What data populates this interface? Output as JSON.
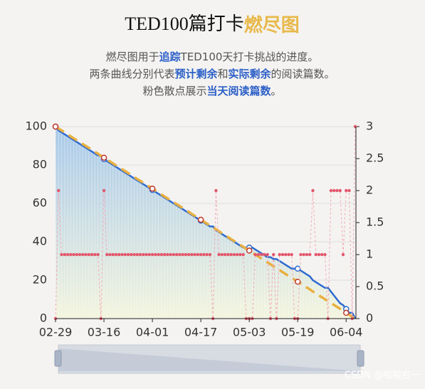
{
  "chart_data": {
    "type": "burndown",
    "title": "TED100篇打卡",
    "title_highlight": "燃尽图",
    "subtitle": [
      [
        {
          "text": "燃尽图用于",
          "bold": false
        },
        {
          "text": "追踪",
          "bold": true
        },
        {
          "text": "TED100天打卡挑战的进度。",
          "bold": false
        }
      ],
      [
        {
          "text": "两条曲线分别代表",
          "bold": false
        },
        {
          "text": "预计剩余",
          "bold": true
        },
        {
          "text": "和",
          "bold": false
        },
        {
          "text": "实际剩余",
          "bold": true
        },
        {
          "text": "的阅读篇数。",
          "bold": false
        }
      ],
      [
        {
          "text": "粉色散点展示",
          "bold": false
        },
        {
          "text": "当天阅读篇数",
          "bold": true
        },
        {
          "text": "。",
          "bold": false
        }
      ]
    ],
    "categories": [
      "02-29",
      null,
      null,
      null,
      null,
      null,
      null,
      null,
      null,
      null,
      null,
      null,
      null,
      null,
      null,
      null,
      "03-16",
      null,
      null,
      null,
      null,
      null,
      null,
      null,
      null,
      null,
      null,
      null,
      null,
      null,
      null,
      null,
      "04-01",
      null,
      null,
      null,
      null,
      null,
      null,
      null,
      null,
      null,
      null,
      null,
      null,
      null,
      null,
      null,
      "04-17",
      null,
      null,
      null,
      null,
      null,
      null,
      null,
      null,
      null,
      null,
      null,
      null,
      null,
      null,
      null,
      "05-03",
      null,
      null,
      null,
      null,
      null,
      null,
      null,
      null,
      null,
      null,
      null,
      null,
      null,
      null,
      null,
      "05-19",
      null,
      null,
      null,
      null,
      null,
      null,
      null,
      null,
      null,
      null,
      null,
      null,
      null,
      null,
      null,
      "06-04",
      null,
      null,
      null
    ],
    "series": [
      {
        "kind": "area",
        "color": "#2f6bd0",
        "values": [
          100,
          98,
          97,
          96,
          95,
          94,
          93,
          92,
          91,
          90,
          89,
          88,
          87,
          86,
          85,
          85,
          83,
          82,
          81,
          80,
          79,
          78,
          77,
          76,
          75,
          74,
          73,
          72,
          71,
          70,
          69,
          68,
          67,
          66,
          65,
          64,
          63,
          62,
          61,
          60,
          59,
          58,
          57,
          56,
          55,
          54,
          53,
          52,
          51,
          50,
          49,
          48,
          48,
          46,
          45,
          44,
          43,
          42,
          41,
          40,
          39,
          38,
          37,
          37,
          37,
          37,
          36,
          35,
          34,
          33,
          32,
          32,
          31,
          31,
          30,
          29,
          28,
          27,
          26,
          26,
          26,
          25,
          24,
          23,
          22,
          20,
          19,
          18,
          17,
          16,
          16,
          14,
          12,
          10,
          8,
          7,
          5,
          3,
          3,
          0
        ]
      },
      {
        "kind": "dashed",
        "color": "#e8b040",
        "values": [
          100,
          99.0,
          98.0,
          97.0,
          96.0,
          94.9,
          93.9,
          92.9,
          91.9,
          90.9,
          89.9,
          88.9,
          87.9,
          86.9,
          85.9,
          84.8,
          83.8,
          82.8,
          81.8,
          80.8,
          79.8,
          78.8,
          77.8,
          76.8,
          75.8,
          74.7,
          73.7,
          72.7,
          71.7,
          70.7,
          69.7,
          68.7,
          67.7,
          66.7,
          65.7,
          64.6,
          63.6,
          62.6,
          61.6,
          60.6,
          59.6,
          58.6,
          57.6,
          56.6,
          55.6,
          54.5,
          53.5,
          52.5,
          51.5,
          50.5,
          49.5,
          48.5,
          47.5,
          46.5,
          45.5,
          44.4,
          43.4,
          42.4,
          41.4,
          40.4,
          39.4,
          38.4,
          37.4,
          36.4,
          35.4,
          34.3,
          33.3,
          32.3,
          31.3,
          30.3,
          29.3,
          28.3,
          27.3,
          26.3,
          25.3,
          24.2,
          23.2,
          22.2,
          21.2,
          20.2,
          19.2,
          18.2,
          17.2,
          16.2,
          15.2,
          14.1,
          13.1,
          12.1,
          11.1,
          10.1,
          9.1,
          8.1,
          7.1,
          6.1,
          5.1,
          4.0,
          3.0,
          2.0,
          1.0,
          0
        ]
      },
      {
        "kind": "scatter",
        "axis": "y2",
        "color": "#e2566b",
        "values": [
          0,
          2,
          1,
          1,
          1,
          1,
          1,
          1,
          1,
          1,
          1,
          1,
          1,
          1,
          1,
          0,
          2,
          1,
          1,
          1,
          1,
          1,
          1,
          1,
          1,
          1,
          1,
          1,
          1,
          1,
          1,
          1,
          1,
          1,
          1,
          1,
          1,
          1,
          1,
          1,
          1,
          1,
          1,
          1,
          1,
          1,
          1,
          1,
          1,
          1,
          1,
          1,
          0,
          2,
          1,
          1,
          1,
          1,
          1,
          1,
          1,
          1,
          1,
          0,
          0,
          0,
          1,
          1,
          1,
          1,
          1,
          0,
          1,
          0,
          1,
          1,
          1,
          1,
          1,
          0,
          0,
          1,
          1,
          1,
          1,
          2,
          1,
          1,
          1,
          1,
          0,
          2,
          2,
          2,
          2,
          1,
          2,
          2,
          0,
          3
        ]
      }
    ],
    "ylim": [
      0,
      100
    ],
    "yticks": [
      0,
      20,
      40,
      60,
      80,
      100
    ],
    "y2lim": [
      0,
      3
    ],
    "y2ticks": [
      0,
      0.5,
      1,
      1.5,
      2,
      2.5,
      3
    ],
    "grid": true,
    "watermark": "CSDN @啦啦右一"
  }
}
